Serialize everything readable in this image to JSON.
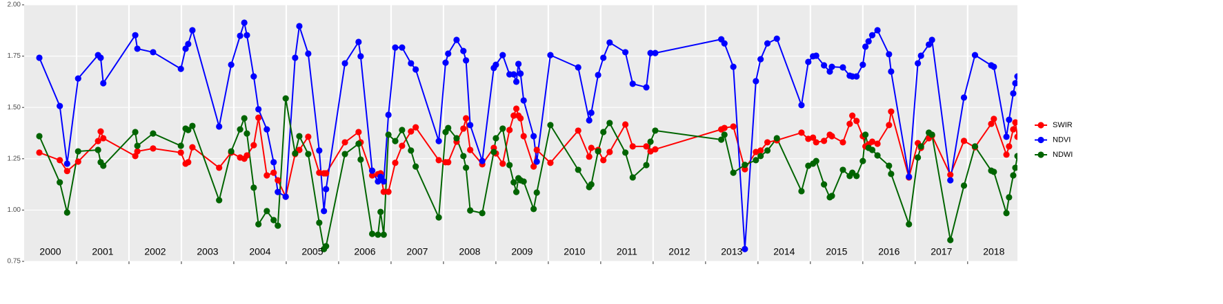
{
  "chart_data": {
    "type": "line",
    "x": [
      2000.29,
      2000.68,
      2000.82,
      2001.03,
      2001.41,
      2001.46,
      2001.51,
      2002.12,
      2002.16,
      2002.46,
      2002.99,
      2003.08,
      2003.13,
      2003.21,
      2003.72,
      2003.95,
      2004.12,
      2004.2,
      2004.25,
      2004.38,
      2004.47,
      2004.63,
      2004.76,
      2004.84,
      2004.99,
      2005.17,
      2005.25,
      2005.42,
      2005.63,
      2005.72,
      2005.76,
      2006.12,
      2006.38,
      2006.42,
      2006.64,
      2006.75,
      2006.8,
      2006.86,
      2006.95,
      2007.08,
      2007.21,
      2007.38,
      2007.47,
      2007.91,
      2008.04,
      2008.09,
      2008.25,
      2008.38,
      2008.43,
      2008.51,
      2008.74,
      2008.96,
      2009.0,
      2009.13,
      2009.26,
      2009.34,
      2009.39,
      2009.43,
      2009.47,
      2009.53,
      2009.72,
      2009.78,
      2010.04,
      2010.57,
      2010.78,
      2010.82,
      2010.95,
      2011.05,
      2011.17,
      2011.47,
      2011.61,
      2011.87,
      2011.95,
      2012.04,
      2013.3,
      2013.36,
      2013.53,
      2013.75,
      2013.96,
      2014.05,
      2014.18,
      2014.36,
      2014.83,
      2014.96,
      2015.05,
      2015.11,
      2015.26,
      2015.37,
      2015.41,
      2015.62,
      2015.75,
      2015.8,
      2015.88,
      2016.0,
      2016.05,
      2016.11,
      2016.18,
      2016.28,
      2016.5,
      2016.54,
      2016.88,
      2017.05,
      2017.11,
      2017.26,
      2017.32,
      2017.67,
      2017.93,
      2018.14,
      2018.45,
      2018.5,
      2018.74,
      2018.79,
      2018.87,
      2018.91,
      2018.95
    ],
    "series": [
      {
        "name": "SWIR",
        "color": "#ff0000",
        "values": [
          1.28,
          1.243,
          1.19,
          1.236,
          1.336,
          1.383,
          1.35,
          1.263,
          1.286,
          1.3,
          1.28,
          1.226,
          1.233,
          1.306,
          1.206,
          1.28,
          1.256,
          1.25,
          1.266,
          1.316,
          1.45,
          1.169,
          1.182,
          1.145,
          1.065,
          1.273,
          1.293,
          1.357,
          1.182,
          1.179,
          1.179,
          1.33,
          1.38,
          1.33,
          1.169,
          1.175,
          1.179,
          1.089,
          1.089,
          1.23,
          1.313,
          1.383,
          1.403,
          1.243,
          1.233,
          1.233,
          1.333,
          1.397,
          1.447,
          1.293,
          1.223,
          1.303,
          1.276,
          1.226,
          1.39,
          1.46,
          1.494,
          1.46,
          1.447,
          1.36,
          1.212,
          1.293,
          1.23,
          1.387,
          1.26,
          1.303,
          1.293,
          1.243,
          1.283,
          1.417,
          1.31,
          1.31,
          1.286,
          1.296,
          1.393,
          1.4,
          1.407,
          1.199,
          1.283,
          1.29,
          1.33,
          1.34,
          1.377,
          1.347,
          1.353,
          1.33,
          1.337,
          1.367,
          1.36,
          1.33,
          1.42,
          1.46,
          1.434,
          1.36,
          1.31,
          1.32,
          1.333,
          1.323,
          1.414,
          1.48,
          1.159,
          1.326,
          1.303,
          1.35,
          1.363,
          1.172,
          1.337,
          1.306,
          1.42,
          1.444,
          1.27,
          1.31,
          1.393,
          1.427,
          1.357
        ]
      },
      {
        "name": "NDVI",
        "color": "#0000ff",
        "values": [
          1.742,
          1.507,
          1.226,
          1.641,
          1.755,
          1.742,
          1.618,
          1.852,
          1.786,
          1.769,
          1.688,
          1.786,
          1.809,
          1.876,
          1.407,
          1.708,
          1.849,
          1.913,
          1.852,
          1.651,
          1.491,
          1.393,
          1.233,
          1.088,
          1.065,
          1.742,
          1.896,
          1.762,
          1.29,
          0.995,
          1.102,
          1.715,
          1.819,
          1.749,
          1.192,
          1.139,
          1.162,
          1.139,
          1.464,
          1.792,
          1.792,
          1.715,
          1.685,
          1.336,
          1.718,
          1.762,
          1.829,
          1.775,
          1.729,
          1.414,
          1.239,
          1.692,
          1.708,
          1.755,
          1.661,
          1.661,
          1.625,
          1.712,
          1.665,
          1.534,
          1.36,
          1.236,
          1.755,
          1.695,
          1.437,
          1.474,
          1.658,
          1.742,
          1.816,
          1.769,
          1.615,
          1.598,
          1.765,
          1.765,
          1.832,
          1.812,
          1.698,
          0.81,
          1.628,
          1.735,
          1.812,
          1.835,
          1.511,
          1.722,
          1.749,
          1.752,
          1.705,
          1.675,
          1.698,
          1.695,
          1.655,
          1.651,
          1.651,
          1.708,
          1.796,
          1.822,
          1.852,
          1.876,
          1.759,
          1.675,
          1.162,
          1.715,
          1.752,
          1.806,
          1.829,
          1.145,
          1.548,
          1.755,
          1.705,
          1.698,
          1.357,
          1.44,
          1.568,
          1.618,
          1.651
        ]
      },
      {
        "name": "NDWI",
        "color": "#006400",
        "values": [
          1.36,
          1.135,
          0.988,
          1.286,
          1.293,
          1.233,
          1.216,
          1.38,
          1.313,
          1.373,
          1.313,
          1.397,
          1.39,
          1.41,
          1.048,
          1.286,
          1.393,
          1.447,
          1.373,
          1.109,
          0.931,
          0.995,
          0.951,
          0.924,
          1.544,
          1.276,
          1.36,
          1.273,
          0.938,
          0.81,
          0.824,
          1.273,
          1.323,
          1.246,
          0.884,
          0.88,
          0.991,
          0.88,
          1.367,
          1.336,
          1.39,
          1.29,
          1.212,
          0.964,
          1.38,
          1.4,
          1.35,
          1.263,
          1.206,
          0.998,
          0.985,
          1.283,
          1.35,
          1.397,
          1.219,
          1.135,
          1.088,
          1.155,
          1.145,
          1.139,
          1.005,
          1.085,
          1.414,
          1.196,
          1.112,
          1.125,
          1.286,
          1.38,
          1.424,
          1.28,
          1.159,
          1.219,
          1.333,
          1.387,
          1.343,
          1.367,
          1.182,
          1.22,
          1.243,
          1.263,
          1.29,
          1.35,
          1.092,
          1.216,
          1.226,
          1.239,
          1.125,
          1.062,
          1.069,
          1.196,
          1.166,
          1.182,
          1.166,
          1.239,
          1.367,
          1.303,
          1.293,
          1.266,
          1.216,
          1.176,
          0.931,
          1.256,
          1.31,
          1.377,
          1.367,
          0.854,
          1.119,
          1.31,
          1.192,
          1.186,
          0.985,
          1.062,
          1.169,
          1.206,
          1.263
        ]
      }
    ],
    "xlim": [
      2000,
      2018.95
    ],
    "xticks": [
      {
        "value": 2000.5,
        "label": "2000"
      },
      {
        "value": 2001.5,
        "label": "2001"
      },
      {
        "value": 2002.5,
        "label": "2002"
      },
      {
        "value": 2003.5,
        "label": "2003"
      },
      {
        "value": 2004.5,
        "label": "2004"
      },
      {
        "value": 2005.5,
        "label": "2005"
      },
      {
        "value": 2006.5,
        "label": "2006"
      },
      {
        "value": 2007.5,
        "label": "2007"
      },
      {
        "value": 2008.5,
        "label": "2008"
      },
      {
        "value": 2009.5,
        "label": "2009"
      },
      {
        "value": 2010.5,
        "label": "2010"
      },
      {
        "value": 2011.5,
        "label": "2011"
      },
      {
        "value": 2012.5,
        "label": "2012"
      },
      {
        "value": 2013.5,
        "label": "2013"
      },
      {
        "value": 2014.5,
        "label": "2014"
      },
      {
        "value": 2015.5,
        "label": "2015"
      },
      {
        "value": 2016.5,
        "label": "2016"
      },
      {
        "value": 2017.5,
        "label": "2017"
      },
      {
        "value": 2018.5,
        "label": "2018"
      }
    ],
    "xbreaks": [
      2001,
      2002,
      2003,
      2004,
      2005,
      2006,
      2007,
      2008,
      2009,
      2010,
      2011,
      2012,
      2013,
      2014,
      2015,
      2016,
      2017,
      2018
    ],
    "ylim": [
      0.75,
      2.0
    ],
    "yticks": [
      {
        "value": 0.75,
        "label": "0.75"
      },
      {
        "value": 1.0,
        "label": "1.00"
      },
      {
        "value": 1.25,
        "label": "1.25"
      },
      {
        "value": 1.5,
        "label": "1.50"
      },
      {
        "value": 1.75,
        "label": "1.75"
      },
      {
        "value": 2.0,
        "label": "2.00"
      }
    ],
    "grid": true,
    "legend": "right"
  }
}
